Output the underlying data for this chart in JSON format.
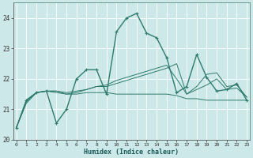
{
  "xlabel": "Humidex (Indice chaleur)",
  "background_color": "#cde8e8",
  "grid_color": "#b8d8d8",
  "line_color": "#2e7b6e",
  "xlim": [
    0,
    23
  ],
  "ylim": [
    20,
    24.5
  ],
  "yticks": [
    20,
    21,
    22,
    23,
    24
  ],
  "xticks": [
    0,
    1,
    2,
    3,
    4,
    5,
    6,
    7,
    8,
    9,
    10,
    11,
    12,
    13,
    14,
    15,
    16,
    17,
    18,
    19,
    20,
    21,
    22,
    23
  ],
  "series": [
    {
      "y": [
        20.4,
        21.3,
        21.55,
        21.6,
        20.55,
        21.0,
        22.0,
        22.3,
        22.3,
        21.5,
        23.55,
        24.0,
        24.15,
        23.5,
        23.35,
        22.7,
        21.55,
        21.75,
        22.8,
        22.05,
        21.6,
        21.65,
        21.85,
        21.3
      ],
      "marker": true,
      "linewidth": 1.0,
      "markersize": 2.5
    },
    {
      "y": [
        20.4,
        21.3,
        21.55,
        21.6,
        21.55,
        21.5,
        21.5,
        21.55,
        21.55,
        21.55,
        21.5,
        21.5,
        21.5,
        21.5,
        21.5,
        21.5,
        21.45,
        21.35,
        21.35,
        21.3,
        21.3,
        21.3,
        21.3,
        21.3
      ],
      "marker": false,
      "linewidth": 0.7,
      "markersize": 0
    },
    {
      "y": [
        20.4,
        21.2,
        21.55,
        21.6,
        21.6,
        21.55,
        21.6,
        21.65,
        21.75,
        21.8,
        21.95,
        22.05,
        22.15,
        22.25,
        22.35,
        22.45,
        22.0,
        21.5,
        21.65,
        21.8,
        22.0,
        21.65,
        21.7,
        21.4
      ],
      "marker": false,
      "linewidth": 0.7,
      "markersize": 0
    },
    {
      "y": [
        20.4,
        21.25,
        21.55,
        21.6,
        21.6,
        21.5,
        21.55,
        21.65,
        21.75,
        21.75,
        21.85,
        21.95,
        22.05,
        22.15,
        22.25,
        22.35,
        22.5,
        21.5,
        21.75,
        22.15,
        22.2,
        21.75,
        21.8,
        21.4
      ],
      "marker": false,
      "linewidth": 0.7,
      "markersize": 0
    }
  ]
}
